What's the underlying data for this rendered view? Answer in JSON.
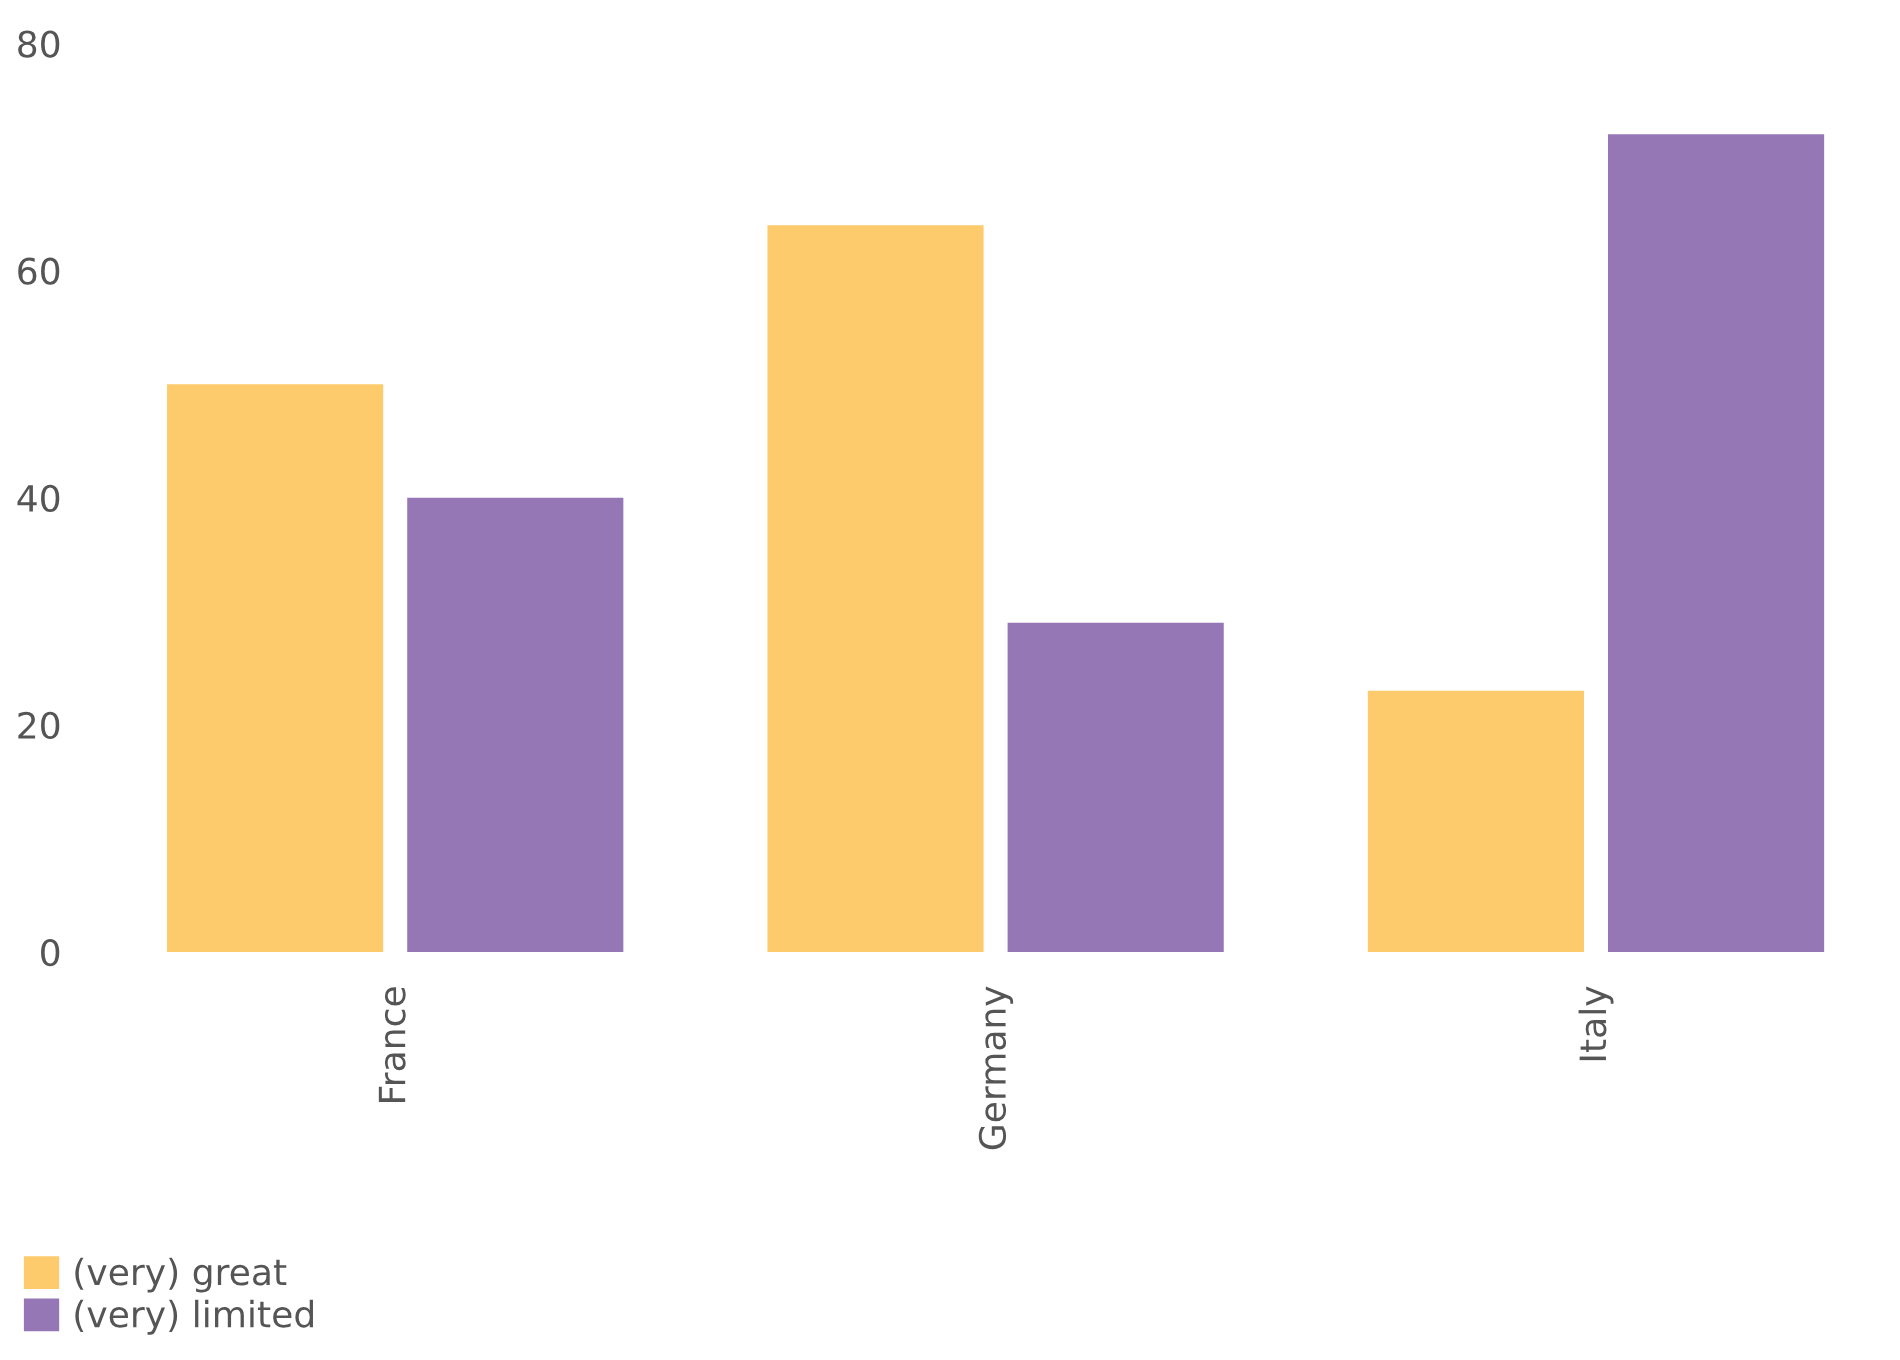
{
  "chart_data": {
    "type": "bar",
    "categories": [
      "France",
      "Germany",
      "Italy"
    ],
    "series": [
      {
        "name": "(very) great",
        "color": "#fdcb6c",
        "values": [
          50,
          64,
          23
        ]
      },
      {
        "name": "(very) limited",
        "color": "#9677b5",
        "values": [
          40,
          29,
          72
        ]
      }
    ],
    "ylim": [
      0,
      80
    ],
    "yticks": [
      0,
      20,
      40,
      60,
      80
    ],
    "grid": false,
    "legend": "bottom left"
  }
}
